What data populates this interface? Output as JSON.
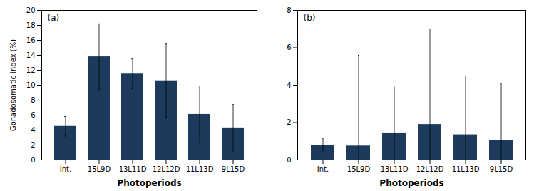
{
  "chart_data": [
    {
      "type": "bar",
      "categories": [
        "Int.",
        "15L9D",
        "13L11D",
        "12L12D",
        "11L13D",
        "9L15D"
      ],
      "values": [
        4.5,
        13.8,
        11.5,
        10.6,
        6.1,
        4.3
      ],
      "errors_lower": [
        1.3,
        4.4,
        2.0,
        4.9,
        3.8,
        3.1
      ],
      "errors_upper": [
        1.3,
        4.4,
        2.0,
        4.9,
        3.8,
        3.1
      ],
      "ylabel": "Gonadosomatic index (%)",
      "xlabel": "Photoperiods",
      "annotations": [
        "(a)"
      ],
      "ylim": [
        0,
        20
      ],
      "yticks": [
        0,
        2,
        4,
        6,
        8,
        10,
        12,
        14,
        16,
        18,
        20
      ],
      "color": "#1b3a5c",
      "grid": false
    },
    {
      "type": "bar",
      "categories": [
        "Int.",
        "15L9D",
        "13L11D",
        "12L12D",
        "11L13D",
        "9L15D"
      ],
      "values": [
        0.8,
        0.75,
        1.45,
        1.9,
        1.35,
        1.05
      ],
      "errors_lower": [
        0.35,
        0.75,
        1.45,
        1.9,
        1.35,
        1.05
      ],
      "errors_upper": [
        0.35,
        4.85,
        2.45,
        5.1,
        3.15,
        3.05
      ],
      "xlabel": "Photoperiods",
      "annotations": [
        "(b)"
      ],
      "ylim": [
        0,
        8
      ],
      "yticks": [
        0,
        2,
        4,
        6,
        8
      ],
      "color": "#1b3a5c",
      "grid": false
    }
  ]
}
